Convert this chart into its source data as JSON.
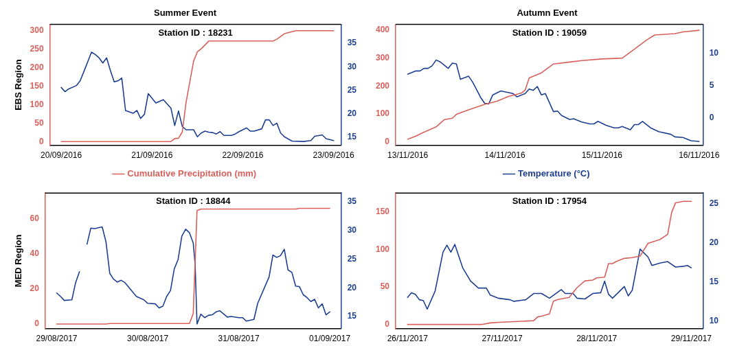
{
  "chart_data": [
    {
      "type": "line",
      "title": "Summer Event",
      "ylabel": "EBS Region",
      "annotations": [
        "Station ID : 18231"
      ],
      "legend": "bottom",
      "marker": "none",
      "line_style": "solid",
      "xlim": [
        "2016-09-19T21:00",
        "2016-09-23T02:00"
      ],
      "xticks": [
        {
          "value": "2016-09-20",
          "label": "20/09/2016"
        },
        {
          "value": "2016-09-21",
          "label": "21/09/2016"
        },
        {
          "value": "2016-09-22",
          "label": "22/09/2016"
        },
        {
          "value": "2016-09-23",
          "label": "23/09/2016"
        }
      ],
      "ylim": [
        -10,
        317
      ],
      "yticks": [
        0,
        50,
        100,
        150,
        200,
        250,
        300
      ],
      "y2lim": [
        13.3,
        39
      ],
      "y2ticks": [
        15,
        20,
        25,
        30,
        35
      ],
      "series": [
        {
          "name": "Cumulative Precipitation (mm)",
          "color": "#d9605a",
          "x": [
            "2016-09-20T00:00",
            "2016-09-21T05:00",
            "2016-09-21T06:00",
            "2016-09-21T07:00",
            "2016-09-21T08:00",
            "2016-09-21T09:00",
            "2016-09-21T11:00",
            "2016-09-21T12:00",
            "2016-09-21T13:00",
            "2016-09-21T15:00",
            "2016-09-22T08:00",
            "2016-09-22T09:00",
            "2016-09-22T11:00",
            "2016-09-22T14:00",
            "2016-09-23T00:00"
          ],
          "values": [
            0,
            0,
            8,
            9,
            26,
            106,
            218,
            243,
            251,
            272,
            272,
            277,
            292,
            300,
            300
          ]
        },
        {
          "color": "#1c3f94",
          "axis": "y2",
          "x": [
            "2016-09-20T00:00",
            "2016-09-20T01:00",
            "2016-09-20T02:00",
            "2016-09-20T04:00",
            "2016-09-20T05:00",
            "2016-09-20T06:00",
            "2016-09-20T08:00",
            "2016-09-20T09:00",
            "2016-09-20T10:00",
            "2016-09-20T11:00",
            "2016-09-20T12:00",
            "2016-09-20T13:00",
            "2016-09-20T14:00",
            "2016-09-20T15:00",
            "2016-09-20T16:00",
            "2016-09-20T17:00",
            "2016-09-20T19:00",
            "2016-09-20T20:00",
            "2016-09-20T21:00",
            "2016-09-20T22:00",
            "2016-09-20T23:00",
            "2016-09-21T01:00",
            "2016-09-21T03:00",
            "2016-09-21T05:00",
            "2016-09-21T06:00",
            "2016-09-21T07:00",
            "2016-09-21T08:00",
            "2016-09-21T09:00",
            "2016-09-21T11:00",
            "2016-09-21T12:00",
            "2016-09-21T13:00",
            "2016-09-21T14:00",
            "2016-09-21T15:00",
            "2016-09-21T16:00",
            "2016-09-21T17:00",
            "2016-09-21T18:00",
            "2016-09-21T19:00",
            "2016-09-21T21:00",
            "2016-09-21T22:00",
            "2016-09-21T23:00",
            "2016-09-22T01:00",
            "2016-09-22T02:00",
            "2016-09-22T03:00",
            "2016-09-22T05:00",
            "2016-09-22T06:00",
            "2016-09-22T07:00",
            "2016-09-22T08:00",
            "2016-09-22T09:00",
            "2016-09-22T10:00",
            "2016-09-22T11:00",
            "2016-09-22T13:00",
            "2016-09-22T16:00",
            "2016-09-22T18:00",
            "2016-09-22T19:00",
            "2016-09-22T21:00",
            "2016-09-22T22:00",
            "2016-09-23T00:00"
          ],
          "values": [
            25.6,
            24.7,
            25.3,
            26.0,
            27.0,
            29.0,
            33.1,
            32.6,
            31.9,
            30.8,
            31.9,
            29.2,
            26.8,
            27.0,
            27.6,
            20.7,
            20.1,
            20.7,
            19.0,
            19.9,
            24.3,
            22.3,
            23.0,
            21.2,
            17.5,
            20.6,
            17.3,
            16.6,
            16.6,
            15.1,
            15.9,
            16.3,
            16.1,
            16.0,
            15.7,
            16.2,
            15.4,
            15.4,
            15.7,
            16.2,
            17.0,
            16.3,
            16.3,
            16.8,
            18.7,
            18.7,
            17.5,
            18.0,
            15.9,
            15.1,
            14.2,
            14.1,
            14.3,
            15.2,
            15.5,
            14.7,
            14.3
          ]
        }
      ]
    },
    {
      "type": "line",
      "title": "Autumn Event",
      "annotations": [
        "Station ID : 19059"
      ],
      "legend": "bottom",
      "marker": "none",
      "line_style": "solid",
      "xlim": [
        "2016-11-12T21:00",
        "2016-11-16T01:00"
      ],
      "xticks": [
        {
          "value": "2016-11-13",
          "label": "13/11/2016"
        },
        {
          "value": "2016-11-14",
          "label": "14/11/2016"
        },
        {
          "value": "2016-11-15",
          "label": "15/11/2016"
        },
        {
          "value": "2016-11-16",
          "label": "16/11/2016"
        }
      ],
      "ylim": [
        -13,
        421
      ],
      "yticks": [
        0,
        100,
        200,
        300,
        400
      ],
      "y2lim": [
        -4.2,
        14.5
      ],
      "y2ticks": [
        0,
        5,
        10
      ],
      "series": [
        {
          "color": "#d9605a",
          "x": [
            "2016-11-13T00:00",
            "2016-11-13T02:00",
            "2016-11-13T04:00",
            "2016-11-13T07:00",
            "2016-11-13T09:00",
            "2016-11-13T11:00",
            "2016-11-13T12:00",
            "2016-11-13T15:00",
            "2016-11-13T19:00",
            "2016-11-13T22:00",
            "2016-11-14T01:00",
            "2016-11-14T04:00",
            "2016-11-14T05:00",
            "2016-11-14T06:00",
            "2016-11-14T09:00",
            "2016-11-14T12:00",
            "2016-11-14T16:00",
            "2016-11-14T19:00",
            "2016-11-15T00:00",
            "2016-11-15T05:00",
            "2016-11-15T08:00",
            "2016-11-15T11:00",
            "2016-11-15T13:00",
            "2016-11-15T18:00",
            "2016-11-15T20:00",
            "2016-11-16T00:00"
          ],
          "values": [
            9,
            20,
            34,
            53,
            79,
            84,
            98,
            114,
            134,
            145,
            163,
            174,
            185,
            229,
            247,
            279,
            286,
            291,
            297,
            300,
            332,
            365,
            383,
            388,
            394,
            400
          ]
        },
        {
          "name": "Temperature (°C)",
          "color": "#1c3f94",
          "axis": "y2",
          "x": [
            "2016-11-13T00:00",
            "2016-11-13T02:00",
            "2016-11-13T03:00",
            "2016-11-13T04:00",
            "2016-11-13T05:00",
            "2016-11-13T06:00",
            "2016-11-13T07:00",
            "2016-11-13T08:00",
            "2016-11-13T10:00",
            "2016-11-13T11:00",
            "2016-11-13T12:00",
            "2016-11-13T13:00",
            "2016-11-13T15:00",
            "2016-11-13T16:00",
            "2016-11-13T18:00",
            "2016-11-13T19:00",
            "2016-11-13T20:00",
            "2016-11-13T21:00",
            "2016-11-13T23:00",
            "2016-11-14T02:00",
            "2016-11-14T03:00",
            "2016-11-14T05:00",
            "2016-11-14T06:00",
            "2016-11-14T07:00",
            "2016-11-14T08:00",
            "2016-11-14T09:00",
            "2016-11-14T10:00",
            "2016-11-14T12:00",
            "2016-11-14T13:00",
            "2016-11-14T14:00",
            "2016-11-14T16:00",
            "2016-11-14T17:00",
            "2016-11-14T19:00",
            "2016-11-14T21:00",
            "2016-11-14T22:00",
            "2016-11-14T23:00",
            "2016-11-15T01:00",
            "2016-11-15T03:00",
            "2016-11-15T04:00",
            "2016-11-15T05:00",
            "2016-11-15T07:00",
            "2016-11-15T08:00",
            "2016-11-15T09:00",
            "2016-11-15T10:00",
            "2016-11-15T12:00",
            "2016-11-15T14:00",
            "2016-11-15T17:00",
            "2016-11-15T18:00",
            "2016-11-15T20:00",
            "2016-11-15T22:00",
            "2016-11-16T00:00"
          ],
          "values": [
            6.8,
            7.3,
            7.3,
            7.7,
            7.7,
            8.1,
            9.0,
            8.7,
            7.7,
            8.5,
            8.4,
            6.0,
            6.5,
            5.6,
            3.2,
            2.3,
            2.2,
            3.6,
            4.2,
            3.8,
            3.3,
            3.8,
            4.5,
            4.3,
            4.9,
            3.6,
            3.8,
            1.0,
            1.1,
            0.4,
            -0.2,
            -0.1,
            -0.6,
            -0.9,
            -0.9,
            -0.5,
            -1.1,
            -1.5,
            -1.5,
            -1.3,
            -1.8,
            -1.0,
            -1.0,
            -0.5,
            -1.5,
            -2.1,
            -2.5,
            -2.9,
            -3.0,
            -3.5,
            -3.6
          ]
        }
      ]
    },
    {
      "type": "line",
      "ylabel": "MED Region",
      "annotations": [
        "Station ID : 18844"
      ],
      "marker": "none",
      "line_style": "solid",
      "xlim": [
        "2017-08-28T21:00",
        "2017-09-01T03:00"
      ],
      "xticks": [
        {
          "value": "2017-08-29",
          "label": "29/08/2017"
        },
        {
          "value": "2017-08-30",
          "label": "30/08/2017"
        },
        {
          "value": "2017-08-31",
          "label": "31/08/2017"
        },
        {
          "value": "2017-09-01",
          "label": "01/09/2017"
        }
      ],
      "ylim": [
        -2.6,
        74.6
      ],
      "yticks": [
        0,
        20,
        40,
        60
      ],
      "y2lim": [
        12.9,
        36.5
      ],
      "y2ticks": [
        15,
        20,
        25,
        30,
        35
      ],
      "series": [
        {
          "color": "#d9605a",
          "x": [
            "2017-08-29T00:00",
            "2017-08-29T13:00",
            "2017-08-29T14:00",
            "2017-08-30T11:00",
            "2017-08-30T12:00",
            "2017-08-30T13:00",
            "2017-08-30T14:00",
            "2017-08-31T15:00",
            "2017-08-31T16:00",
            "2017-09-01T00:00"
          ],
          "values": [
            0,
            0,
            0.3,
            0.3,
            5.9,
            64.6,
            65.5,
            65.5,
            65.9,
            65.9
          ]
        },
        {
          "color": "#1c3f94",
          "axis": "y2",
          "x": [
            "2017-08-29T00:00",
            "2017-08-29T01:00",
            "2017-08-29T02:00",
            "2017-08-29T04:00",
            "2017-08-29T05:00",
            "2017-08-29T06:00",
            "2017-08-29T07:00",
            "2017-08-29T08:00",
            "2017-08-29T09:00",
            "2017-08-29T10:00",
            "2017-08-29T12:00",
            "2017-08-29T13:00",
            "2017-08-29T14:00",
            "2017-08-29T15:00",
            "2017-08-29T16:00",
            "2017-08-29T17:00",
            "2017-08-29T18:00",
            "2017-08-29T21:00",
            "2017-08-29T23:00",
            "2017-08-30T00:00",
            "2017-08-30T02:00",
            "2017-08-30T03:00",
            "2017-08-30T04:00",
            "2017-08-30T05:00",
            "2017-08-30T06:00",
            "2017-08-30T07:00",
            "2017-08-30T08:00",
            "2017-08-30T09:00",
            "2017-08-30T10:00",
            "2017-08-30T11:00",
            "2017-08-30T12:00",
            "2017-08-30T12:30",
            "2017-08-30T13:00",
            "2017-08-30T14:00",
            "2017-08-30T15:00",
            "2017-08-30T16:00",
            "2017-08-30T17:00",
            "2017-08-30T18:00",
            "2017-08-30T19:00",
            "2017-08-30T21:00",
            "2017-08-30T22:00",
            "2017-08-31T00:00",
            "2017-08-31T01:00",
            "2017-08-31T02:00",
            "2017-08-31T04:00",
            "2017-08-31T05:00",
            "2017-08-31T08:00",
            "2017-08-31T09:00",
            "2017-08-31T10:00",
            "2017-08-31T11:00",
            "2017-08-31T12:00",
            "2017-08-31T13:00",
            "2017-08-31T14:00",
            "2017-08-31T15:00",
            "2017-08-31T16:00",
            "2017-08-31T17:00",
            "2017-08-31T18:00",
            "2017-08-31T19:00",
            "2017-08-31T20:00",
            "2017-08-31T21:00",
            "2017-08-31T22:00",
            "2017-08-31T23:00",
            "2017-09-01T00:00"
          ],
          "values": [
            19.1,
            18.5,
            17.8,
            17.9,
            20.9,
            22.8,
            null,
            27.6,
            30.4,
            30.3,
            30.6,
            28.0,
            22.5,
            21.5,
            21.0,
            21.3,
            20.9,
            18.5,
            17.9,
            17.3,
            17.2,
            16.5,
            16.8,
            18.5,
            19.5,
            23.3,
            24.9,
            29.0,
            30.2,
            29.6,
            27.8,
            24.1,
            13.7,
            15.4,
            14.8,
            15.2,
            15.3,
            15.8,
            16.0,
            14.9,
            15.0,
            14.8,
            14.8,
            14.2,
            14.5,
            17.3,
            21.9,
            25.7,
            25.3,
            25.6,
            26.7,
            23.1,
            22.7,
            20.3,
            20.2,
            18.8,
            18.3,
            17.6,
            18.0,
            16.5,
            17.2,
            15.3,
            15.8
          ]
        }
      ]
    },
    {
      "type": "line",
      "annotations": [
        "Station ID : 17954"
      ],
      "marker": "none",
      "line_style": "solid",
      "xlim": [
        "2017-11-25T21:00",
        "2017-11-29T03:00"
      ],
      "xticks": [
        {
          "value": "2017-11-26",
          "label": "26/11/2017"
        },
        {
          "value": "2017-11-27",
          "label": "27/11/2017"
        },
        {
          "value": "2017-11-28",
          "label": "28/11/2017"
        },
        {
          "value": "2017-11-29",
          "label": "29/11/2017"
        }
      ],
      "ylim": [
        -5.5,
        175
      ],
      "yticks": [
        0,
        50,
        100,
        150
      ],
      "y2lim": [
        9,
        26.4
      ],
      "y2ticks": [
        10,
        15,
        20,
        25
      ],
      "series": [
        {
          "color": "#d9605a",
          "x": [
            "2017-11-26T00:00",
            "2017-11-26T19:00",
            "2017-11-26T21:00",
            "2017-11-27T00:00",
            "2017-11-27T04:00",
            "2017-11-27T08:00",
            "2017-11-27T09:00",
            "2017-11-27T10:00",
            "2017-11-27T12:00",
            "2017-11-27T13:00",
            "2017-11-27T14:00",
            "2017-11-27T16:00",
            "2017-11-27T17:00",
            "2017-11-27T19:00",
            "2017-11-27T21:00",
            "2017-11-27T23:00",
            "2017-11-28T00:00",
            "2017-11-28T02:00",
            "2017-11-28T03:00",
            "2017-11-28T04:00",
            "2017-11-28T05:00",
            "2017-11-28T07:00",
            "2017-11-28T09:00",
            "2017-11-28T11:00",
            "2017-11-28T13:00",
            "2017-11-28T16:00",
            "2017-11-28T18:00",
            "2017-11-28T19:00",
            "2017-11-28T20:00",
            "2017-11-28T22:00",
            "2017-11-29T00:00"
          ],
          "values": [
            0,
            0,
            2,
            3,
            4,
            5,
            10,
            11,
            14,
            31,
            33,
            35,
            36,
            49,
            58,
            59,
            62,
            63,
            81,
            81,
            84,
            88,
            89,
            91,
            108,
            113,
            120,
            149,
            162,
            164,
            164
          ]
        },
        {
          "color": "#1c3f94",
          "axis": "y2",
          "x": [
            "2017-11-26T00:00",
            "2017-11-26T01:00",
            "2017-11-26T02:00",
            "2017-11-26T03:00",
            "2017-11-26T04:00",
            "2017-11-26T05:00",
            "2017-11-26T07:00",
            "2017-11-26T09:00",
            "2017-11-26T10:00",
            "2017-11-26T11:00",
            "2017-11-26T12:00",
            "2017-11-26T14:00",
            "2017-11-26T16:00",
            "2017-11-26T18:00",
            "2017-11-26T20:00",
            "2017-11-26T21:00",
            "2017-11-26T23:00",
            "2017-11-27T02:00",
            "2017-11-27T03:00",
            "2017-11-27T06:00",
            "2017-11-27T08:00",
            "2017-11-27T10:00",
            "2017-11-27T12:00",
            "2017-11-27T15:00",
            "2017-11-27T16:00",
            "2017-11-27T18:00",
            "2017-11-27T19:00",
            "2017-11-27T21:00",
            "2017-11-27T23:00",
            "2017-11-28T01:00",
            "2017-11-28T02:00",
            "2017-11-28T03:00",
            "2017-11-28T04:00",
            "2017-11-28T07:00",
            "2017-11-28T08:00",
            "2017-11-28T09:00",
            "2017-11-28T11:00",
            "2017-11-28T13:00",
            "2017-11-28T14:00",
            "2017-11-28T16:00",
            "2017-11-28T18:00",
            "2017-11-28T20:00",
            "2017-11-28T22:00",
            "2017-11-28T23:00",
            "2017-11-29T00:00"
          ],
          "values": [
            13.0,
            13.6,
            13.4,
            12.7,
            12.6,
            11.5,
            13.8,
            18.8,
            19.7,
            18.8,
            19.8,
            16.8,
            15.1,
            14.2,
            14.2,
            13.3,
            12.9,
            12.7,
            12.5,
            12.7,
            13.5,
            13.5,
            12.9,
            14.0,
            13.5,
            13.5,
            12.9,
            12.8,
            13.5,
            13.6,
            15.1,
            13.4,
            12.9,
            14.4,
            13.2,
            13.9,
            19.2,
            18.2,
            17.1,
            17.4,
            17.6,
            16.9,
            17.0,
            17.1,
            16.8
          ]
        }
      ]
    }
  ]
}
